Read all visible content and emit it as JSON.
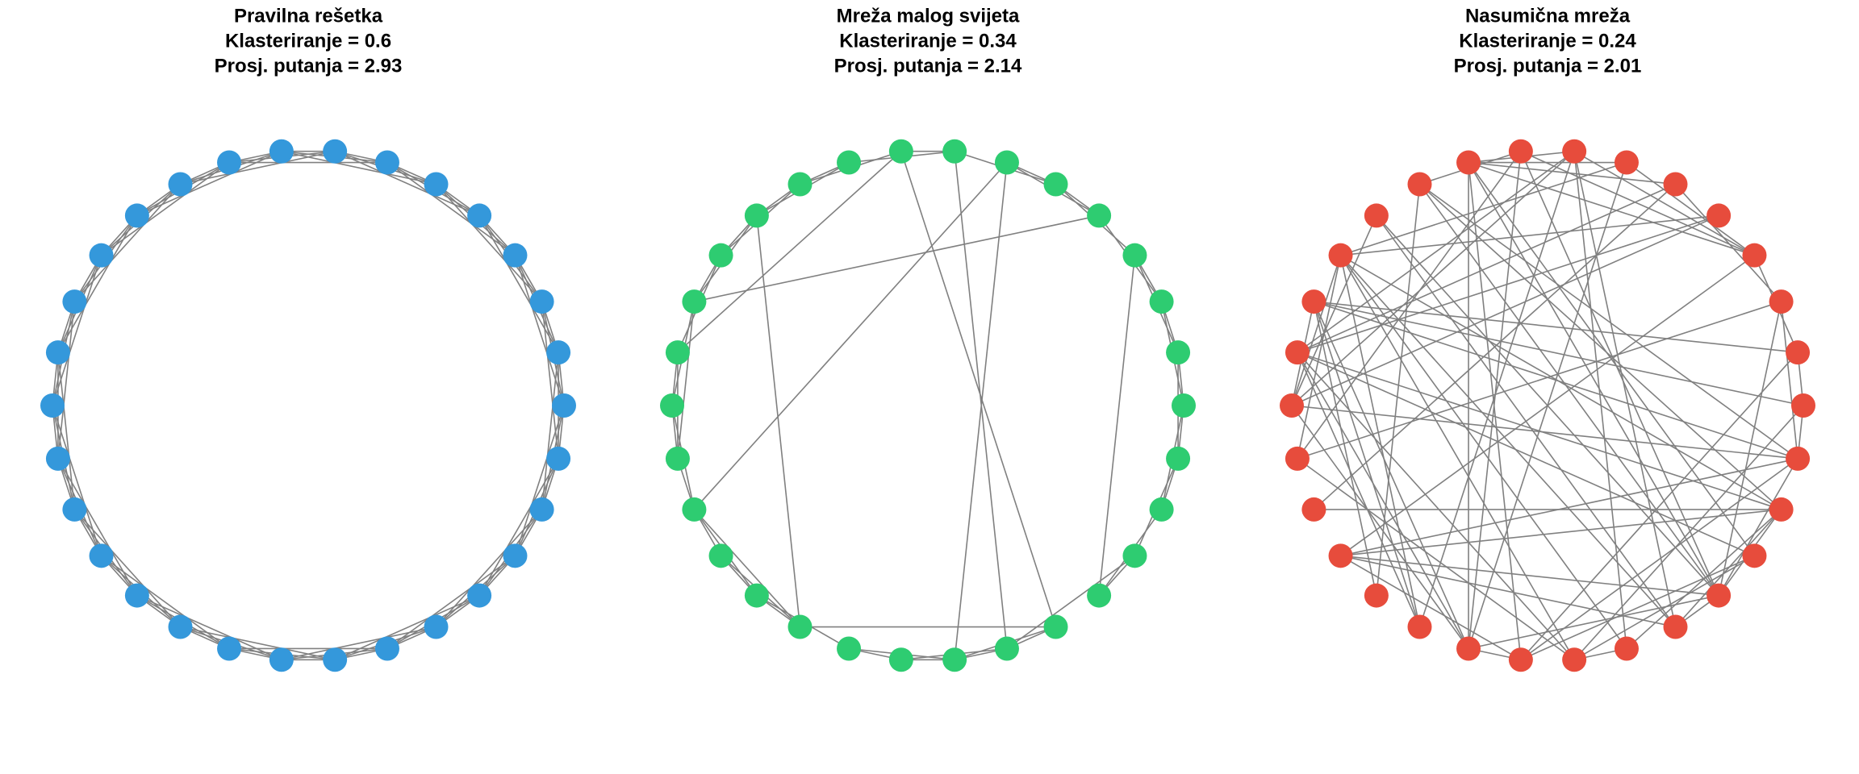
{
  "panels": [
    {
      "title": "Pravilna rešetka",
      "clustering": "Klasteriranje = 0.6",
      "path_length": "Prosj. putanja = 2.93"
    },
    {
      "title": "Mreža malog svijeta",
      "clustering": "Klasteriranje = 0.34",
      "path_length": "Prosj. putanja = 2.14"
    },
    {
      "title": "Nasumična mreža",
      "clustering": "Klasteriranje = 0.24",
      "path_length": "Prosj. putanja = 2.01"
    }
  ]
}
